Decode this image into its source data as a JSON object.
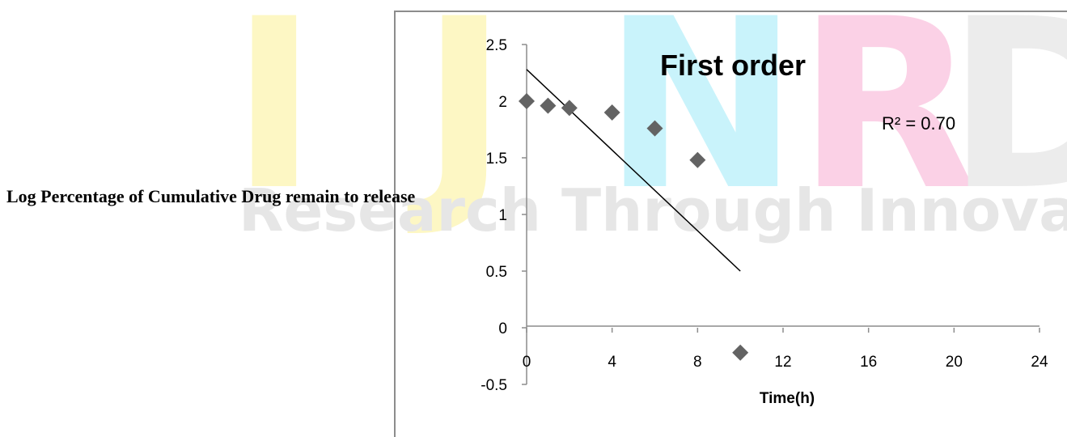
{
  "watermark": {
    "letters": [
      "I",
      "J",
      "N",
      "R",
      "D"
    ],
    "colors": [
      "#fdf7c4",
      "#fdf7c4",
      "#c9f3fb",
      "#fbd1e6",
      "#ececec"
    ],
    "tagline": "Research Through Innovation",
    "tagline_color": "#e6e6e6"
  },
  "chart_data": {
    "type": "scatter",
    "title": "First order",
    "xlabel": "Time(h)",
    "ylabel": "Log Percentage of Cumulative Drug remain to release",
    "xlim": [
      0,
      24
    ],
    "ylim": [
      -0.5,
      2.5
    ],
    "xticks": [
      "0",
      "4",
      "8",
      "12",
      "16",
      "20",
      "24"
    ],
    "yticks": [
      "2.5",
      "2",
      "1.5",
      "1",
      "0.5",
      "0",
      "-0.5"
    ],
    "series": [
      {
        "points": [
          {
            "x": 0,
            "y": 2.0
          },
          {
            "x": 1,
            "y": 1.96
          },
          {
            "x": 2,
            "y": 1.94
          },
          {
            "x": 4,
            "y": 1.9
          },
          {
            "x": 6,
            "y": 1.76
          },
          {
            "x": 8,
            "y": 1.48
          },
          {
            "x": 10,
            "y": -0.22
          }
        ],
        "marker_color": "#636363"
      }
    ],
    "trendline": {
      "x_start": 0,
      "y_start": 2.28,
      "x_end": 10,
      "y_end": 0.5,
      "color": "#000000"
    },
    "annotation": "R² = 0.70",
    "grid": false
  }
}
